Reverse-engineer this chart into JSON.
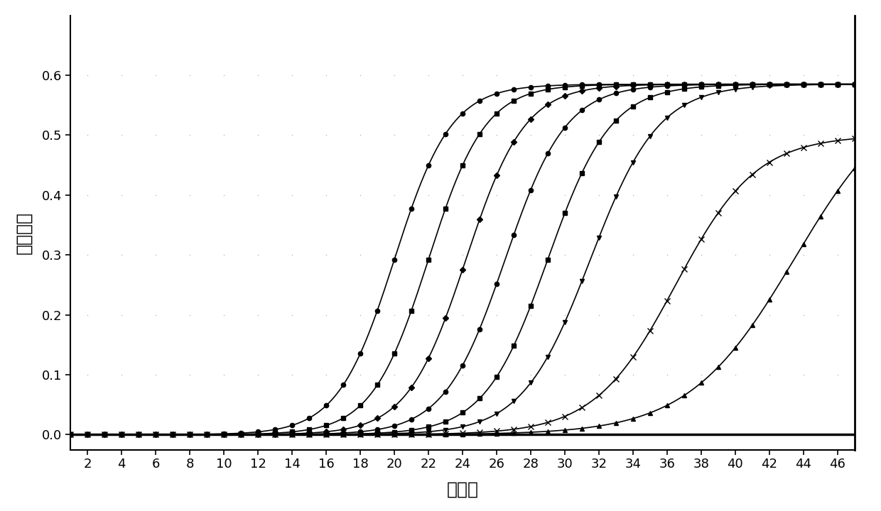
{
  "title": "",
  "xlabel": "循环数",
  "ylabel": "荧光强度",
  "xlim": [
    1,
    47
  ],
  "ylim": [
    -0.025,
    0.7
  ],
  "xticks": [
    2,
    4,
    6,
    8,
    10,
    12,
    14,
    16,
    18,
    20,
    22,
    24,
    26,
    28,
    30,
    32,
    34,
    36,
    38,
    40,
    42,
    44,
    46
  ],
  "yticks": [
    0.0,
    0.1,
    0.2,
    0.3,
    0.4,
    0.5,
    0.6
  ],
  "background_color": "#ffffff",
  "line_color": "#000000",
  "curves": [
    {
      "ct": 20.0,
      "L": 0.585,
      "k": 0.6,
      "marker": "o",
      "markersize": 4.5
    },
    {
      "ct": 22.0,
      "L": 0.585,
      "k": 0.6,
      "marker": "s",
      "markersize": 4.5
    },
    {
      "ct": 24.2,
      "L": 0.585,
      "k": 0.58,
      "marker": "D",
      "markersize": 4.0
    },
    {
      "ct": 26.5,
      "L": 0.585,
      "k": 0.56,
      "marker": "o",
      "markersize": 4.5
    },
    {
      "ct": 29.0,
      "L": 0.585,
      "k": 0.54,
      "marker": "s",
      "markersize": 4.5
    },
    {
      "ct": 31.5,
      "L": 0.585,
      "k": 0.5,
      "marker": "v",
      "markersize": 5.0
    },
    {
      "ct": 36.5,
      "L": 0.5,
      "k": 0.42,
      "marker": "x",
      "markersize": 5.5
    },
    {
      "ct": 43.5,
      "L": 0.59,
      "k": 0.32,
      "marker": "^",
      "markersize": 4.5
    }
  ],
  "dot_grid_color": "#aaaaaa",
  "xlabel_fontsize": 18,
  "ylabel_fontsize": 18,
  "tick_fontsize": 13,
  "linewidth": 1.2
}
